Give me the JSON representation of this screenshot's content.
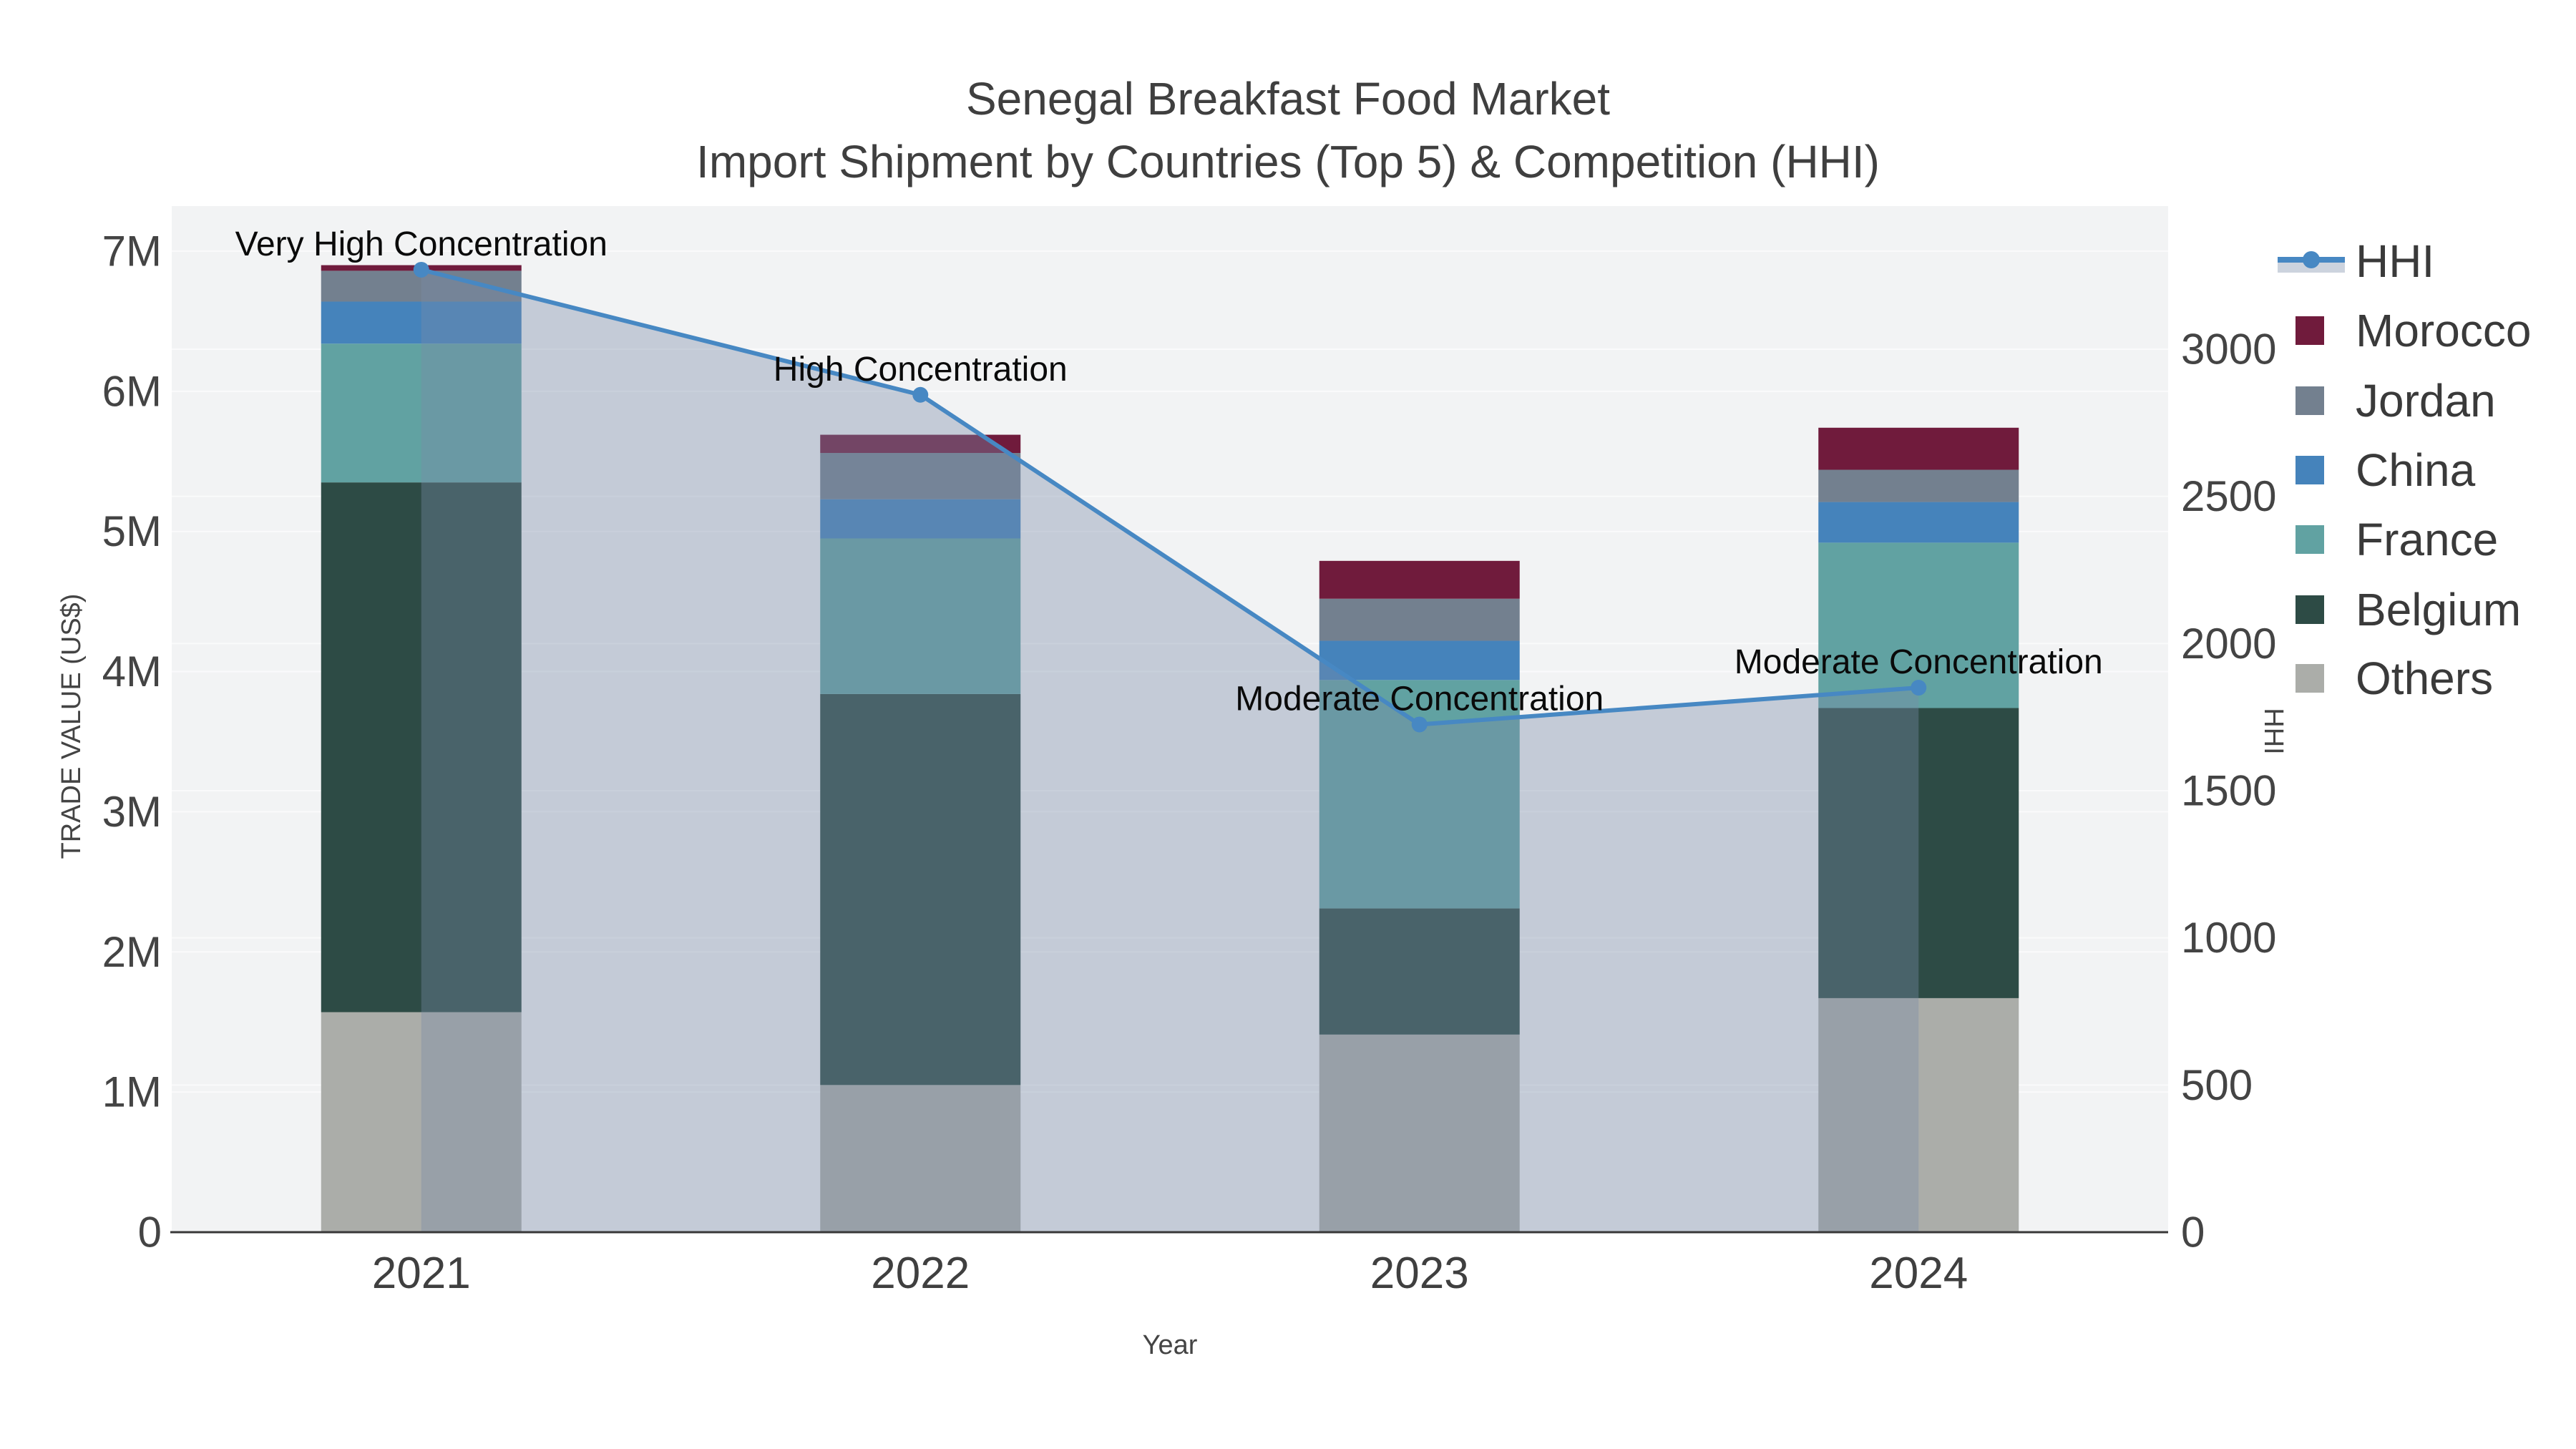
{
  "chart_data": {
    "type": "combo-stacked-bar-line",
    "title_line1": "Senegal Breakfast Food Market",
    "title_line2": "Import Shipment by Countries (Top 5) & Competition (HHI)",
    "xlabel": "Year",
    "ylabel_left": "TRADE VALUE (US$)",
    "ylabel_right": "HHI",
    "categories": [
      "2021",
      "2022",
      "2023",
      "2024"
    ],
    "bar_value_unit": "millions USD",
    "bar_series": [
      {
        "name": "Others",
        "color": "#ABADA9",
        "values": [
          1.57,
          1.05,
          1.41,
          1.67
        ]
      },
      {
        "name": "Belgium",
        "color": "#2D4B45",
        "values": [
          3.78,
          2.79,
          0.9,
          2.07
        ]
      },
      {
        "name": "France",
        "color": "#61A2A2",
        "values": [
          0.99,
          1.11,
          1.63,
          1.18
        ]
      },
      {
        "name": "China",
        "color": "#4583BB",
        "values": [
          0.3,
          0.28,
          0.28,
          0.29
        ]
      },
      {
        "name": "Jordan",
        "color": "#73808F",
        "values": [
          0.22,
          0.33,
          0.3,
          0.23
        ]
      },
      {
        "name": "Morocco",
        "color": "#701B3C",
        "values": [
          0.04,
          0.13,
          0.27,
          0.3
        ]
      }
    ],
    "line_series": {
      "name": "HHI",
      "color": "#4788C3",
      "fill_color": "rgba(120,140,168,0.38)",
      "values": [
        3270,
        2845,
        1725,
        1850
      ]
    },
    "annotations": [
      {
        "category": "2021",
        "text": "Very High Concentration"
      },
      {
        "category": "2022",
        "text": "High Concentration"
      },
      {
        "category": "2023",
        "text": "Moderate Concentration"
      },
      {
        "category": "2024",
        "text": "Moderate Concentration"
      }
    ],
    "left_axis": {
      "tick_values": [
        0,
        1,
        2,
        3,
        4,
        5,
        6,
        7
      ],
      "tick_labels": [
        "0",
        "1M",
        "2M",
        "3M",
        "4M",
        "5M",
        "6M",
        "7M"
      ],
      "range_top": 7.32
    },
    "right_axis": {
      "tick_values": [
        0,
        500,
        1000,
        1500,
        2000,
        2500,
        3000
      ],
      "tick_labels": [
        "0",
        "500",
        "1000",
        "1500",
        "2000",
        "2500",
        "3000"
      ],
      "range_top": 3487
    },
    "legend_order": [
      "HHI",
      "Morocco",
      "Jordan",
      "China",
      "France",
      "Belgium",
      "Others"
    ],
    "layout_hints": {
      "grid": "on",
      "legend_position": "right-outside",
      "stack_order_bottom_to_top": [
        "Others",
        "Belgium",
        "France",
        "China",
        "Jordan",
        "Morocco"
      ]
    },
    "colors": {
      "plot_background": "#F2F3F4",
      "figure_background": "#FFFFFF",
      "gridline": "#FAFAFB",
      "axis_line": "#383838",
      "tick_text": "#444444",
      "title_text": "#3F3F3F",
      "annotation_text": "#0A0A0A"
    }
  }
}
